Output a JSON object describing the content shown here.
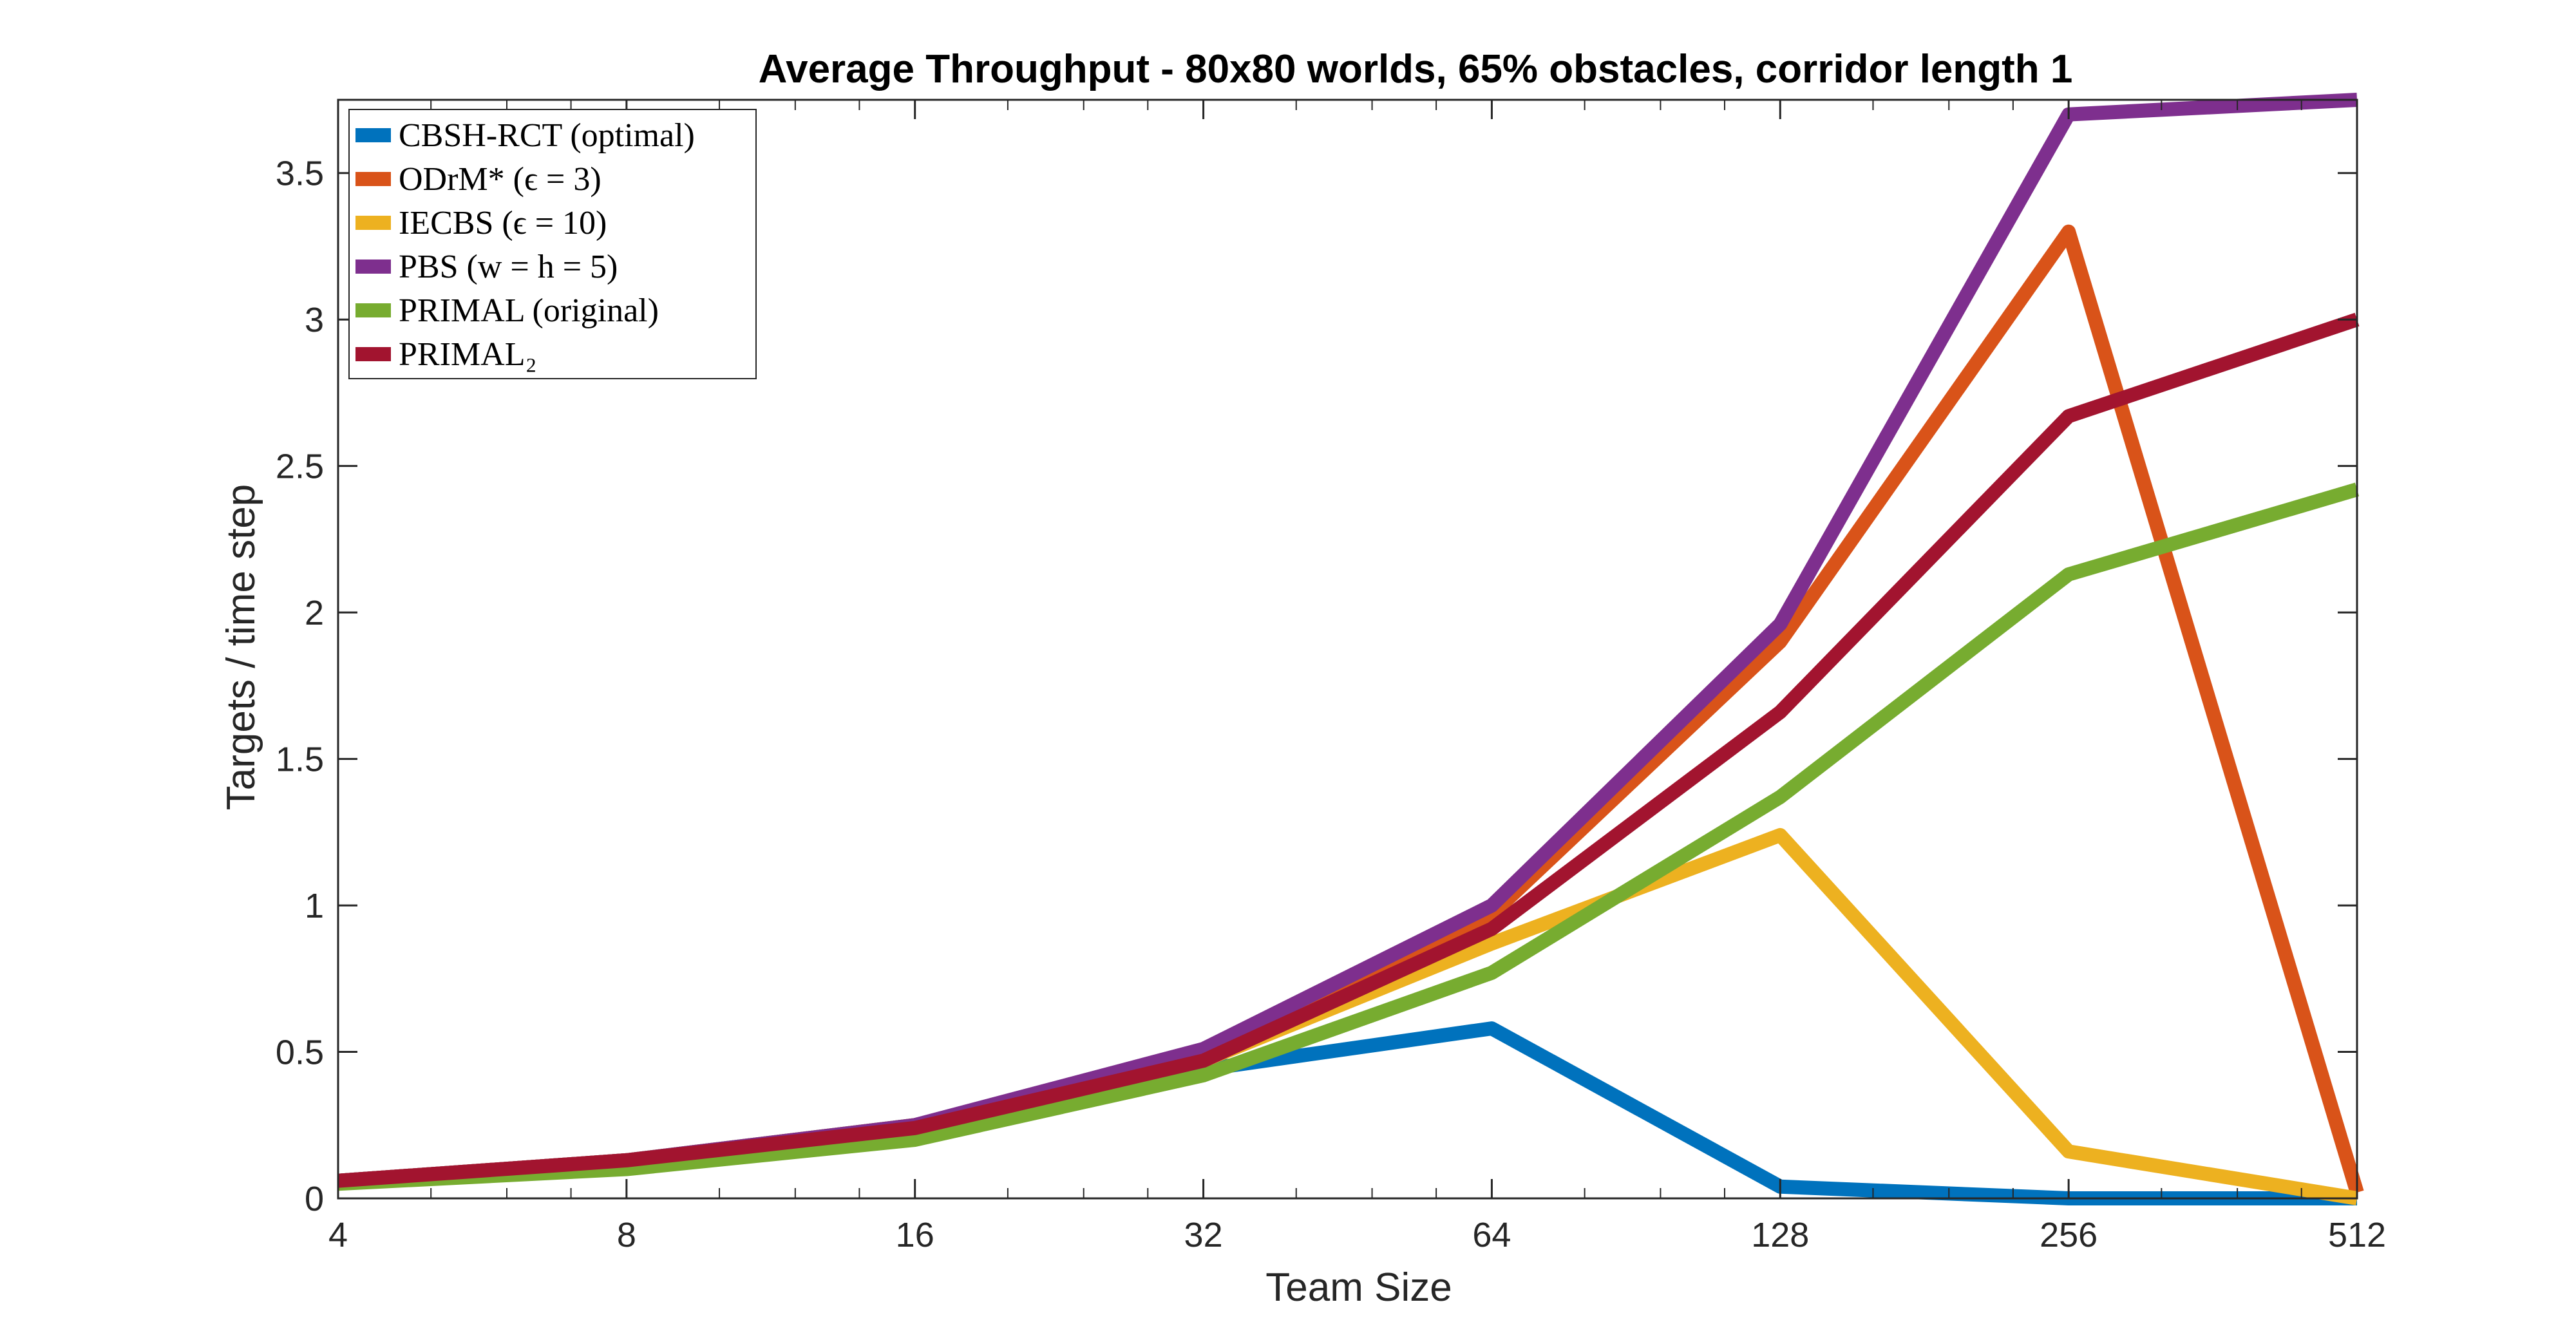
{
  "chart_data": {
    "type": "line",
    "title": "Average Throughput - 80x80 worlds, 65% obstacles, corridor length 1",
    "xlabel": "Team Size",
    "ylabel": "Targets / time step",
    "x_scale": "log2",
    "x": [
      4,
      8,
      16,
      32,
      64,
      128,
      256,
      512
    ],
    "x_tick_labels": [
      "4",
      "8",
      "16",
      "32",
      "64",
      "128",
      "256",
      "512"
    ],
    "xlim": [
      4,
      512
    ],
    "ylim": [
      0,
      3.75
    ],
    "y_ticks": [
      0,
      0.5,
      1,
      1.5,
      2,
      2.5,
      3,
      3.5
    ],
    "y_tick_labels": [
      "0",
      "0.5",
      "1",
      "1.5",
      "2",
      "2.5",
      "3",
      "3.5"
    ],
    "grid": false,
    "legend_position": "top-left",
    "series": [
      {
        "name": "CBSH-RCT (optimal)",
        "color": "#0072BD",
        "values": [
          0.06,
          0.13,
          0.25,
          0.44,
          0.58,
          0.04,
          0.0,
          0.0
        ]
      },
      {
        "name": "ODrM* (ϵ = 3)",
        "color": "#D95319",
        "values": [
          0.06,
          0.13,
          0.25,
          0.48,
          0.97,
          1.9,
          3.3,
          0.02
        ]
      },
      {
        "name": "IECBS (ϵ = 10)",
        "color": "#EDB120",
        "values": [
          0.06,
          0.13,
          0.25,
          0.47,
          0.87,
          1.24,
          0.16,
          0.0
        ]
      },
      {
        "name": "PBS (w = h = 5)",
        "color": "#7E2F8E",
        "values": [
          0.06,
          0.13,
          0.25,
          0.51,
          1.0,
          1.96,
          3.7,
          3.75
        ]
      },
      {
        "name": "PRIMAL (original)",
        "color": "#77AC30",
        "values": [
          0.05,
          0.1,
          0.2,
          0.42,
          0.77,
          1.37,
          2.13,
          2.42
        ]
      },
      {
        "name": "PRIMAL₂",
        "color": "#A2142F",
        "values": [
          0.06,
          0.13,
          0.24,
          0.47,
          0.92,
          1.66,
          2.67,
          3.0
        ]
      }
    ]
  }
}
